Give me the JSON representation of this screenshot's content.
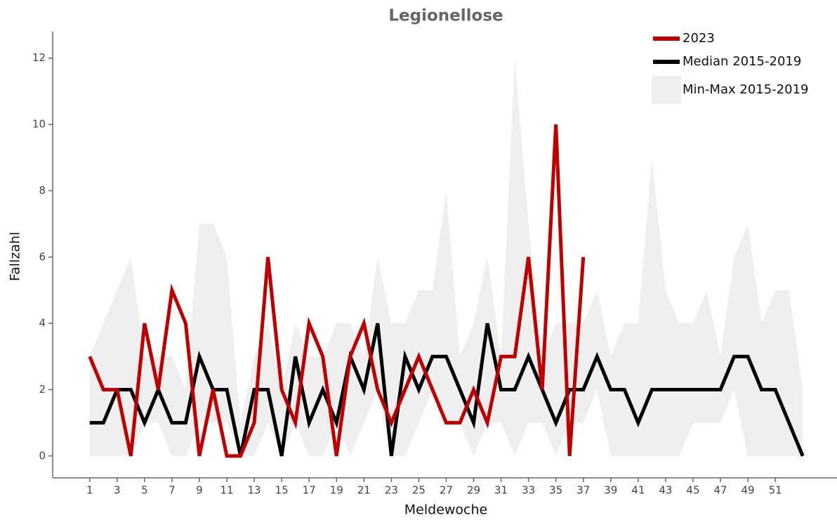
{
  "chart_data": {
    "type": "line",
    "title": "Legionellose",
    "x_label": "Meldewoche",
    "y_label": "Fallzahl",
    "x": [
      1,
      2,
      3,
      4,
      5,
      6,
      7,
      8,
      9,
      10,
      11,
      12,
      13,
      14,
      15,
      16,
      17,
      18,
      19,
      20,
      21,
      22,
      23,
      24,
      25,
      26,
      27,
      28,
      29,
      30,
      31,
      32,
      33,
      34,
      35,
      36,
      37,
      38,
      39,
      40,
      41,
      42,
      43,
      44,
      45,
      46,
      47,
      48,
      49,
      50,
      51,
      52,
      53
    ],
    "band": {
      "name": "Min-Max 2015-2019",
      "color": "#efefef",
      "min": [
        0,
        0,
        0,
        0,
        1,
        1,
        0,
        0,
        1,
        1,
        1,
        0,
        0,
        1,
        0,
        1,
        0,
        0,
        1,
        0,
        1,
        2,
        0,
        0,
        1,
        2,
        1,
        1,
        0,
        1,
        1,
        0,
        1,
        1,
        0,
        1,
        1,
        2,
        0,
        0,
        0,
        0,
        0,
        0,
        1,
        1,
        1,
        2,
        0,
        0,
        0,
        0,
        0
      ],
      "max": [
        3,
        4,
        5,
        6,
        3,
        3,
        3,
        2,
        7,
        7,
        6,
        1,
        3,
        4,
        2,
        4,
        3,
        3,
        4,
        4,
        3,
        6,
        4,
        4,
        5,
        5,
        8,
        3,
        4,
        6,
        3,
        12,
        7,
        3,
        4,
        4,
        4,
        5,
        3,
        4,
        4,
        9,
        5,
        4,
        4,
        5,
        3,
        6,
        7,
        4,
        5,
        5,
        2
      ]
    },
    "series": [
      {
        "name": "2023",
        "color": "#c00000",
        "values": [
          3,
          2,
          2,
          0,
          4,
          2,
          5,
          4,
          0,
          2,
          0,
          0,
          1,
          6,
          2,
          1,
          4,
          3,
          0,
          3,
          4,
          2,
          1,
          2,
          3,
          2,
          1,
          1,
          2,
          1,
          3,
          3,
          6,
          2,
          10,
          0,
          6,
          null,
          null,
          null,
          null,
          null,
          null,
          null,
          null,
          null,
          null,
          null,
          null,
          null,
          null,
          null,
          null
        ]
      },
      {
        "name": "Median 2015-2019",
        "color": "#000000",
        "values": [
          1,
          1,
          2,
          2,
          1,
          2,
          1,
          1,
          3,
          2,
          2,
          0,
          2,
          2,
          0,
          3,
          1,
          2,
          1,
          3,
          2,
          4,
          0,
          3,
          2,
          3,
          3,
          2,
          1,
          4,
          2,
          2,
          3,
          2,
          1,
          2,
          2,
          3,
          2,
          2,
          1,
          2,
          2,
          2,
          2,
          2,
          2,
          3,
          3,
          2,
          2,
          1,
          0
        ]
      }
    ],
    "xlim": [
      -1.7,
      55.5
    ],
    "ylim": [
      -0.66,
      12.8
    ],
    "xticks": [
      1,
      3,
      5,
      7,
      9,
      11,
      13,
      15,
      17,
      19,
      21,
      23,
      25,
      27,
      29,
      31,
      33,
      35,
      37,
      39,
      41,
      43,
      45,
      47,
      49,
      51
    ],
    "yticks": [
      0,
      2,
      4,
      6,
      8,
      10,
      12
    ]
  }
}
